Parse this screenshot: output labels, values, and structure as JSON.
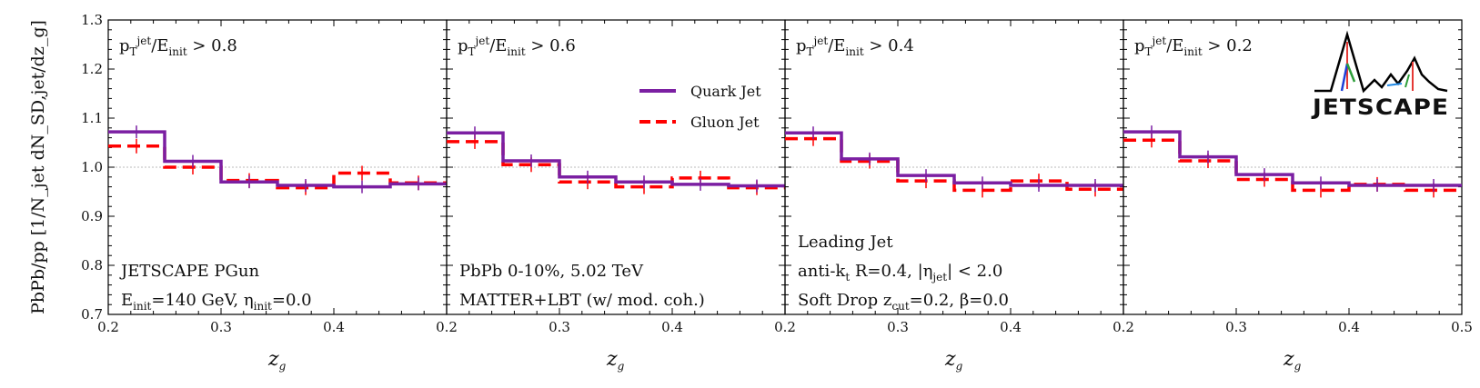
{
  "chart_data": {
    "type": "line",
    "ylabel": "PbPb/pp [1/N_jet dN_SD,jet/dz_g]",
    "xlabel": "z_g",
    "ylim": [
      0.7,
      1.3
    ],
    "yticks": [
      "0.7",
      "0.8",
      "0.9",
      "1.0",
      "1.1",
      "1.2",
      "1.3"
    ],
    "reference_line": 1.0,
    "bin_edges": [
      0.2,
      0.25,
      0.3,
      0.35,
      0.4,
      0.45,
      0.5
    ],
    "colors": {
      "quark": "#7b1fa2",
      "gluon": "#ff0000"
    },
    "legend": {
      "quark": "Quark Jet",
      "gluon": "Gluon Jet"
    },
    "logo": "JETSCAPE",
    "panels": [
      {
        "xlim": [
          0.2,
          0.5
        ],
        "xticks": [
          "0.2",
          "0.3",
          "0.4"
        ],
        "cut_label": "p_T^jet/E_init > 0.8",
        "annotations": [
          "JETSCAPE PGun",
          "E_init=140 GeV, η_init=0.0"
        ],
        "xlabel": "z_g",
        "series": [
          {
            "name": "Quark Jet",
            "values": [
              1.072,
              1.012,
              0.97,
              0.963,
              0.96,
              0.966
            ]
          },
          {
            "name": "Gluon Jet",
            "values": [
              1.043,
              1.0,
              0.973,
              0.958,
              0.988,
              0.968
            ]
          }
        ]
      },
      {
        "xlim": [
          0.2,
          0.5
        ],
        "xticks": [
          "0.2",
          "0.3",
          "0.4"
        ],
        "cut_label": "p_T^jet/E_init > 0.6",
        "annotations": [
          "PbPb 0-10%, 5.02 TeV",
          "MATTER+LBT (w/ mod. coh.)"
        ],
        "xlabel": "z_g",
        "series": [
          {
            "name": "Quark Jet",
            "values": [
              1.07,
              1.013,
              0.98,
              0.97,
              0.965,
              0.962
            ]
          },
          {
            "name": "Gluon Jet",
            "values": [
              1.052,
              1.005,
              0.97,
              0.96,
              0.978,
              0.958
            ]
          }
        ]
      },
      {
        "xlim": [
          0.2,
          0.5
        ],
        "xticks": [
          "0.2",
          "0.3",
          "0.4"
        ],
        "cut_label": "p_T^jet/E_init > 0.4",
        "annotations": [
          "Leading Jet",
          "anti-k_t R=0.4, |η_jet| < 2.0",
          "Soft Drop z_cut=0.2, β=0.0"
        ],
        "xlabel": "z_g",
        "series": [
          {
            "name": "Quark Jet",
            "values": [
              1.07,
              1.017,
              0.983,
              0.968,
              0.963,
              0.963
            ]
          },
          {
            "name": "Gluon Jet",
            "values": [
              1.058,
              1.012,
              0.972,
              0.953,
              0.972,
              0.955
            ]
          }
        ]
      },
      {
        "xlim": [
          0.2,
          0.5
        ],
        "xticks": [
          "0.2",
          "0.3",
          "0.4",
          "0.5"
        ],
        "cut_label": "p_T^jet/E_init > 0.2",
        "annotations": [],
        "xlabel": "z_g",
        "series": [
          {
            "name": "Quark Jet",
            "values": [
              1.072,
              1.021,
              0.985,
              0.968,
              0.963,
              0.963
            ]
          },
          {
            "name": "Gluon Jet",
            "values": [
              1.055,
              1.013,
              0.975,
              0.953,
              0.965,
              0.953
            ]
          }
        ]
      }
    ]
  }
}
